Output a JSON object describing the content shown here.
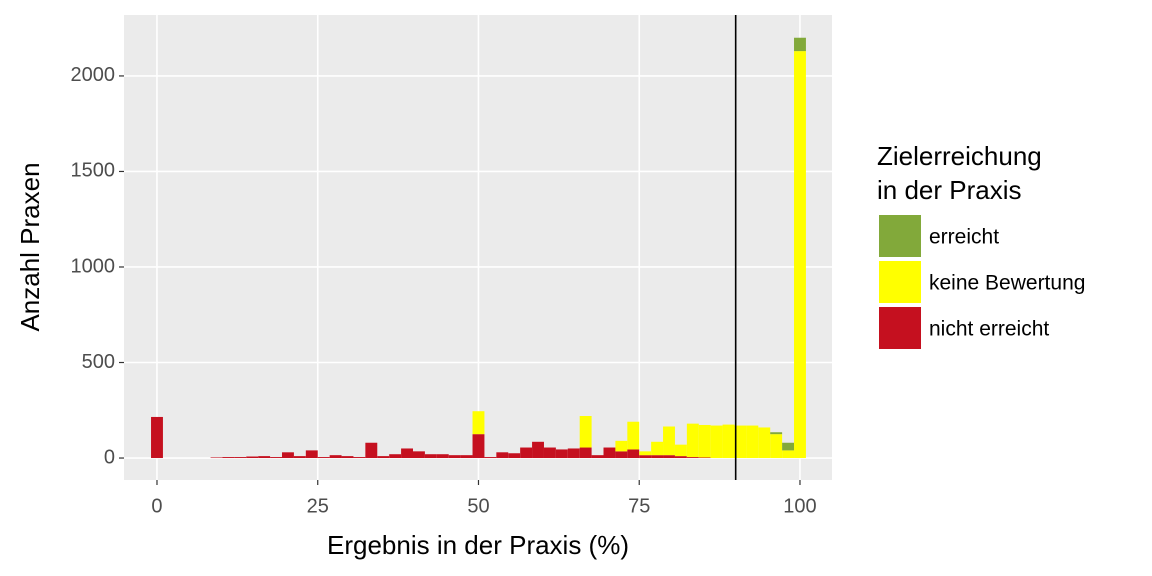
{
  "chart_data": {
    "type": "histogram",
    "x_label": "Ergebnis in der Praxis (%)",
    "y_label": "Anzahl Praxen",
    "legend_title": [
      "Zielerreichung",
      "in der Praxis"
    ],
    "legend_position": "right",
    "grid": true,
    "vline": 90,
    "vline_color": "#000000",
    "xlim": [
      -5.13,
      104.98
    ],
    "ylim": [
      -115,
      2319
    ],
    "xticks": [
      0,
      25,
      50,
      75,
      100
    ],
    "yticks": [
      0,
      500,
      1000,
      1500,
      2000
    ],
    "bins": [
      -0.926,
      0.926,
      2.778,
      4.63,
      6.481,
      8.333,
      10.185,
      12.037,
      13.889,
      15.741,
      17.593,
      19.444,
      21.296,
      23.148,
      25,
      26.852,
      28.704,
      30.556,
      32.407,
      34.259,
      36.111,
      37.963,
      39.815,
      41.667,
      43.519,
      45.37,
      47.222,
      49.074,
      50.926,
      52.778,
      54.63,
      56.481,
      58.333,
      60.185,
      62.037,
      63.889,
      65.741,
      67.593,
      69.444,
      71.296,
      73.148,
      75,
      76.852,
      78.704,
      80.556,
      82.407,
      84.259,
      86.111,
      87.963,
      89.815,
      91.667,
      93.519,
      95.37,
      97.222,
      99.074,
      100.926
    ],
    "series": [
      {
        "name": "erreicht",
        "color": "#82a93a",
        "values": [
          0,
          0,
          0,
          0,
          0,
          0,
          0,
          0,
          0,
          0,
          0,
          0,
          0,
          0,
          0,
          0,
          0,
          0,
          0,
          0,
          0,
          0,
          0,
          0,
          0,
          0,
          0,
          0,
          0,
          0,
          0,
          0,
          0,
          0,
          0,
          0,
          0,
          0,
          0,
          0,
          0,
          0,
          0,
          0,
          0,
          0,
          0,
          0,
          0,
          0,
          0,
          0,
          10,
          40,
          70
        ]
      },
      {
        "name": "keine Bewertung",
        "color": "#ffff00",
        "values": [
          0,
          0,
          0,
          0,
          0,
          0,
          0,
          0,
          0,
          0,
          0,
          0,
          0,
          0,
          0,
          0,
          0,
          0,
          0,
          0,
          0,
          0,
          0,
          0,
          0,
          0,
          0,
          120,
          0,
          0,
          0,
          0,
          0,
          0,
          0,
          0,
          165,
          0,
          0,
          55,
          145,
          20,
          70,
          150,
          60,
          175,
          170,
          170,
          175,
          170,
          170,
          160,
          125,
          40,
          2130
        ]
      },
      {
        "name": "nicht erreicht",
        "color": "#c5101f",
        "values": [
          215,
          0,
          0,
          0,
          0,
          3,
          5,
          5,
          8,
          10,
          5,
          30,
          10,
          40,
          5,
          15,
          10,
          5,
          80,
          10,
          20,
          50,
          35,
          20,
          20,
          15,
          15,
          125,
          5,
          30,
          25,
          55,
          85,
          55,
          45,
          50,
          55,
          15,
          55,
          35,
          45,
          15,
          15,
          15,
          10,
          5,
          3,
          0,
          0,
          0,
          0,
          0,
          0,
          0,
          0
        ]
      }
    ]
  }
}
